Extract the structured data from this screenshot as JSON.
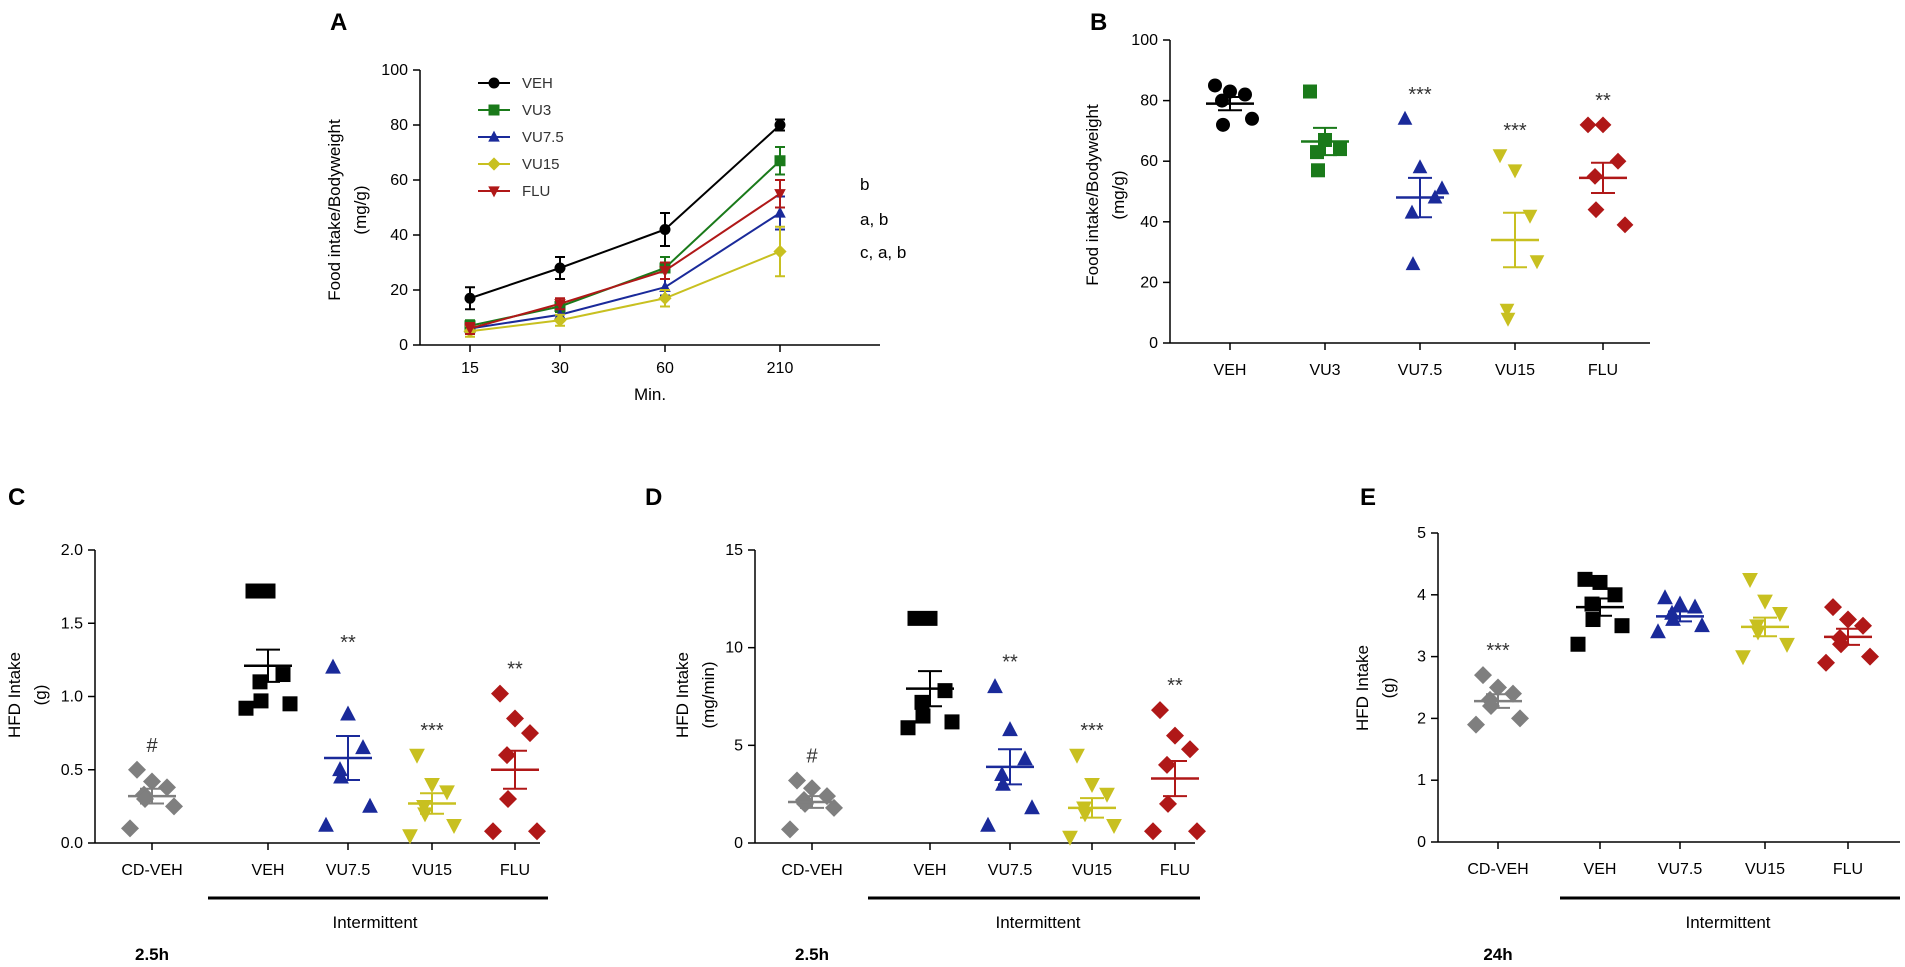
{
  "colors": {
    "VEH": "#000000",
    "VU3": "#1a7a1a",
    "VU7.5": "#1a2a9a",
    "VU15": "#c8c020",
    "FLU": "#b01818",
    "CD-VEH": "#7f7f7f",
    "annotation": "#333333"
  },
  "chart_data": [
    {
      "id": "A",
      "type": "line",
      "panel_label": "A",
      "title": "",
      "xlabel": "Min.",
      "ylabel": "Food intake/Bodyweight",
      "ylabel_unit": "(mg/g)",
      "categories": [
        "15",
        "30",
        "60",
        "210"
      ],
      "yticks": [
        "0",
        "20",
        "40",
        "60",
        "80",
        "100"
      ],
      "ylim": [
        0,
        100
      ],
      "legend_position": "top-left",
      "series": [
        {
          "name": "VEH",
          "color_key": "VEH",
          "marker": "circle",
          "values": [
            17,
            28,
            42,
            80
          ],
          "sem": [
            4,
            4,
            6,
            2
          ]
        },
        {
          "name": "VU3",
          "color_key": "VU3",
          "marker": "square",
          "values": [
            7,
            14,
            28,
            67
          ],
          "sem": [
            2,
            2,
            4,
            5
          ]
        },
        {
          "name": "VU7.5",
          "color_key": "VU7.5",
          "marker": "triangle-up",
          "values": [
            6,
            11,
            21,
            48
          ],
          "sem": [
            2,
            2,
            3,
            6
          ]
        },
        {
          "name": "VU15",
          "color_key": "VU15",
          "marker": "diamond",
          "values": [
            5,
            9,
            17,
            34
          ],
          "sem": [
            2,
            2,
            3,
            9
          ]
        },
        {
          "name": "FLU",
          "color_key": "FLU",
          "marker": "triangle-down",
          "values": [
            6,
            15,
            27,
            55
          ],
          "sem": [
            2,
            2,
            3,
            5
          ]
        }
      ],
      "annotations": [
        "b",
        "a, b",
        "c, a, b"
      ]
    },
    {
      "id": "B",
      "type": "scatter",
      "panel_label": "B",
      "xlabel": "",
      "ylabel": "Food intake/Bodyweight",
      "ylabel_unit": "(mg/g)",
      "yticks": [
        "0",
        "20",
        "40",
        "60",
        "80",
        "100"
      ],
      "ylim": [
        0,
        100
      ],
      "groups": [
        {
          "name": "VEH",
          "color_key": "VEH",
          "marker": "circle",
          "points": [
            85,
            83,
            82,
            80,
            72,
            74
          ],
          "mean": 79,
          "sem": 2.2,
          "sig": ""
        },
        {
          "name": "VU3",
          "color_key": "VU3",
          "marker": "square",
          "points": [
            83,
            67,
            64,
            63,
            57
          ],
          "mean": 66.5,
          "sem": 4.5,
          "sig": ""
        },
        {
          "name": "VU7.5",
          "color_key": "VU7.5",
          "marker": "triangle-up",
          "points": [
            74,
            58,
            48,
            43,
            26,
            51
          ],
          "mean": 48,
          "sem": 6.5,
          "sig": "***"
        },
        {
          "name": "VU15",
          "color_key": "VU15",
          "marker": "triangle-down",
          "points": [
            62,
            57,
            42,
            11,
            8,
            27
          ],
          "mean": 34,
          "sem": 9,
          "sig": "***"
        },
        {
          "name": "FLU",
          "color_key": "FLU",
          "marker": "diamond",
          "points": [
            72,
            72,
            60,
            55,
            44,
            39
          ],
          "mean": 54.5,
          "sem": 5,
          "sig": "**"
        }
      ]
    },
    {
      "id": "C",
      "type": "scatter",
      "panel_label": "C",
      "ylabel": "HFD Intake",
      "ylabel_unit": "(g)",
      "yticks": [
        "0.0",
        "0.5",
        "1.0",
        "1.5",
        "2.0"
      ],
      "ylim": [
        0,
        2
      ],
      "bracket_label": "Intermittent",
      "period_label": "2.5h",
      "groups": [
        {
          "name": "CD-VEH",
          "color_key": "CD-VEH",
          "marker": "diamond",
          "points": [
            0.5,
            0.42,
            0.38,
            0.33,
            0.3,
            0.25,
            0.1
          ],
          "mean": 0.32,
          "sem": 0.05,
          "sig": "#"
        },
        {
          "name": "VEH",
          "color_key": "VEH",
          "marker": "square",
          "points": [
            1.72,
            1.72,
            1.15,
            1.1,
            0.97,
            0.95,
            0.92
          ],
          "mean": 1.21,
          "sem": 0.11,
          "sig": ""
        },
        {
          "name": "VU7.5",
          "color_key": "VU7.5",
          "marker": "triangle-up",
          "points": [
            1.2,
            0.88,
            0.65,
            0.5,
            0.45,
            0.25,
            0.12
          ],
          "mean": 0.58,
          "sem": 0.15,
          "sig": "**"
        },
        {
          "name": "VU15",
          "color_key": "VU15",
          "marker": "triangle-down",
          "points": [
            0.6,
            0.4,
            0.35,
            0.25,
            0.2,
            0.12,
            0.05
          ],
          "mean": 0.27,
          "sem": 0.07,
          "sig": "***"
        },
        {
          "name": "FLU",
          "color_key": "FLU",
          "marker": "diamond",
          "points": [
            1.02,
            0.85,
            0.75,
            0.6,
            0.3,
            0.08,
            0.08
          ],
          "mean": 0.5,
          "sem": 0.13,
          "sig": "**"
        }
      ]
    },
    {
      "id": "D",
      "type": "scatter",
      "panel_label": "D",
      "ylabel": "HFD Intake",
      "ylabel_unit": "(mg/min)",
      "yticks": [
        "0",
        "5",
        "10",
        "15"
      ],
      "ylim": [
        0,
        15
      ],
      "bracket_label": "Intermittent",
      "period_label": "2.5h",
      "groups": [
        {
          "name": "CD-VEH",
          "color_key": "CD-VEH",
          "marker": "diamond",
          "points": [
            3.2,
            2.8,
            2.4,
            2.2,
            2.0,
            1.8,
            0.7
          ],
          "mean": 2.1,
          "sem": 0.3,
          "sig": "#"
        },
        {
          "name": "VEH",
          "color_key": "VEH",
          "marker": "square",
          "points": [
            11.5,
            11.5,
            7.8,
            7.2,
            6.5,
            6.2,
            5.9
          ],
          "mean": 7.9,
          "sem": 0.9,
          "sig": ""
        },
        {
          "name": "VU7.5",
          "color_key": "VU7.5",
          "marker": "triangle-up",
          "points": [
            8.0,
            5.8,
            4.3,
            3.5,
            3.0,
            1.8,
            0.9
          ],
          "mean": 3.9,
          "sem": 0.9,
          "sig": "**"
        },
        {
          "name": "VU15",
          "color_key": "VU15",
          "marker": "triangle-down",
          "points": [
            4.5,
            3.0,
            2.5,
            1.8,
            1.5,
            0.9,
            0.3
          ],
          "mean": 1.8,
          "sem": 0.5,
          "sig": "***"
        },
        {
          "name": "FLU",
          "color_key": "FLU",
          "marker": "diamond",
          "points": [
            6.8,
            5.5,
            4.8,
            4.0,
            2.0,
            0.6,
            0.6
          ],
          "mean": 3.3,
          "sem": 0.9,
          "sig": "**"
        }
      ]
    },
    {
      "id": "E",
      "type": "scatter",
      "panel_label": "E",
      "ylabel": "HFD Intake",
      "ylabel_unit": "(g)",
      "yticks": [
        "0",
        "1",
        "2",
        "3",
        "4",
        "5"
      ],
      "ylim": [
        0,
        5
      ],
      "bracket_label": "Intermittent",
      "period_label": "24h",
      "groups": [
        {
          "name": "CD-VEH",
          "color_key": "CD-VEH",
          "marker": "diamond",
          "points": [
            2.7,
            2.5,
            2.4,
            2.3,
            2.2,
            2.0,
            1.9
          ],
          "mean": 2.28,
          "sem": 0.11,
          "sig": "***"
        },
        {
          "name": "VEH",
          "color_key": "VEH",
          "marker": "square",
          "points": [
            4.25,
            4.2,
            4.0,
            3.85,
            3.6,
            3.5,
            3.2
          ],
          "mean": 3.8,
          "sem": 0.14,
          "sig": ""
        },
        {
          "name": "VU7.5",
          "color_key": "VU7.5",
          "marker": "triangle-up",
          "points": [
            3.95,
            3.85,
            3.8,
            3.7,
            3.6,
            3.5,
            3.4
          ],
          "mean": 3.65,
          "sem": 0.08,
          "sig": ""
        },
        {
          "name": "VU15",
          "color_key": "VU15",
          "marker": "triangle-down",
          "points": [
            4.25,
            3.9,
            3.7,
            3.5,
            3.4,
            3.2,
            3.0
          ],
          "mean": 3.48,
          "sem": 0.15,
          "sig": ""
        },
        {
          "name": "FLU",
          "color_key": "FLU",
          "marker": "diamond",
          "points": [
            3.8,
            3.6,
            3.5,
            3.3,
            3.2,
            3.0,
            2.9
          ],
          "mean": 3.32,
          "sem": 0.13,
          "sig": ""
        }
      ]
    }
  ]
}
